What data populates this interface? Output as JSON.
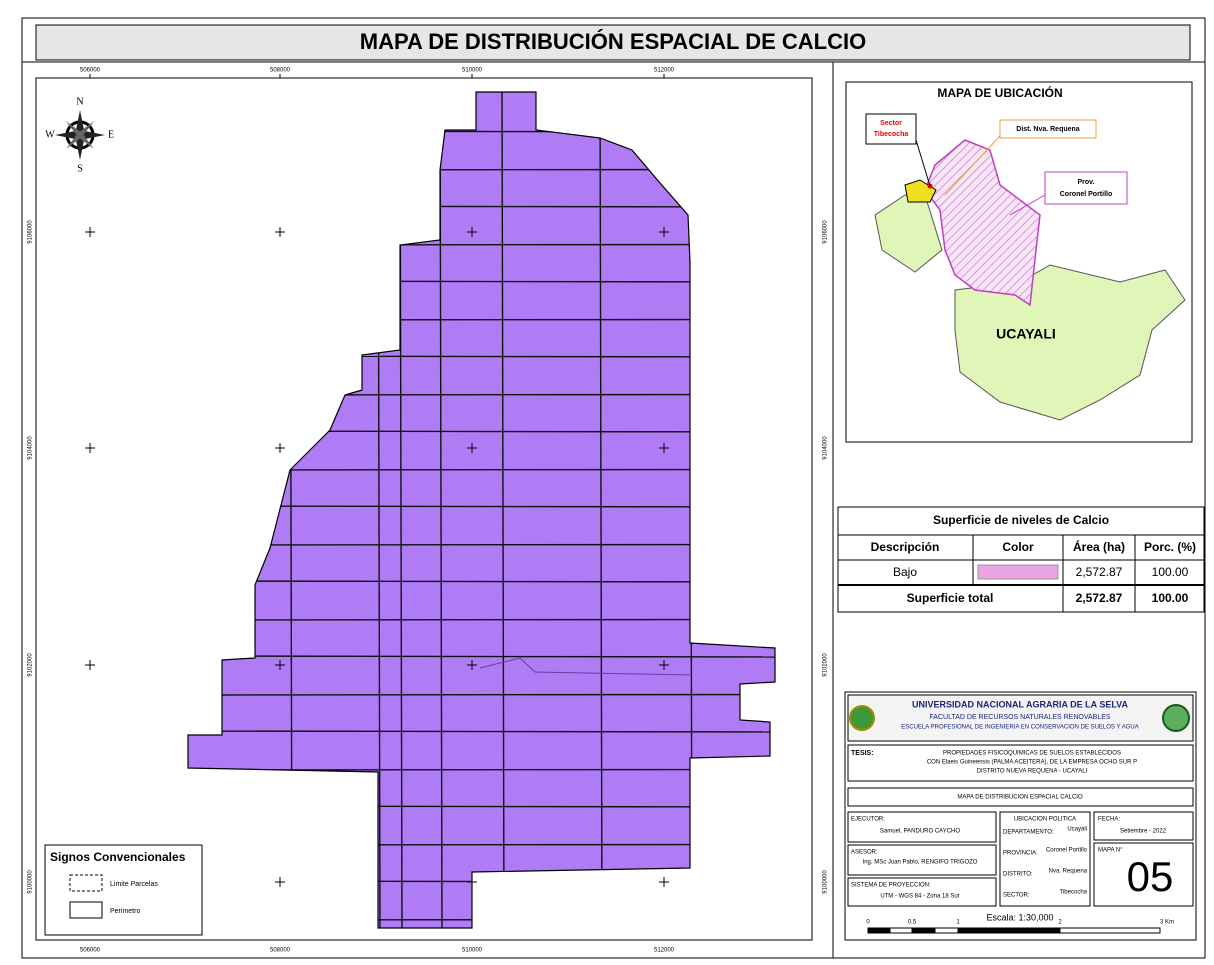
{
  "title": "MAPA DE DISTRIBUCIÓN ESPACIAL DE CALCIO",
  "map": {
    "x_labels": [
      "506000",
      "508000",
      "510000",
      "512000"
    ],
    "y_labels": [
      "9106000",
      "9104000",
      "9102000",
      "9100000"
    ],
    "north": {
      "n": "N",
      "s": "S",
      "e": "E",
      "w": "W"
    }
  },
  "legend": {
    "title": "Signos Convencionales",
    "items": [
      "Limite Parcelas",
      "Perimetro"
    ]
  },
  "location_map": {
    "title": "MAPA DE UBICACIÓN",
    "sector": [
      "Sector",
      "Tibecocha"
    ],
    "district": "Dist. Nva. Requena",
    "province": [
      "Prov.",
      "Coronel Portillo"
    ],
    "region": "UCAYALI"
  },
  "table": {
    "title": "Superficie de niveles de Calcio",
    "headers": [
      "Descripción",
      "Color",
      "Área (ha)",
      "Porc. (%)"
    ],
    "rows": [
      [
        "Bajo",
        "2,572.87",
        "100.00"
      ]
    ],
    "total": [
      "Superficie total",
      "2,572.87",
      "100.00"
    ]
  },
  "institution": {
    "name": "UNIVERSIDAD NACIONAL AGRARIA DE LA SELVA",
    "faculty": "FACULTAD DE RECURSOS NATURALES RENOVABLES",
    "school": "ESCUELA PROFESIONAL DE INGENIERIA EN CONSERVACION DE SUELOS Y AGUA",
    "thesis_label": "TESIS:",
    "thesis": [
      "PROPIEDADES FISICOQUIMICAS DE SUELOS ESTABLECIDOS",
      "CON Elaeis Guineensis (PALMA ACEITERA), DE LA EMPRESA OCHO SUR P",
      "DISTRITO NUEVA REQUENA -  UCAYALI"
    ],
    "map_title": "MAPA DE DISTRIBUCION ESPACIAL CALCIO",
    "executor_label": "EJECUTOR:",
    "executor": "Samuel, PANDURO CAYCHO",
    "advisor_label": "ASESOR:",
    "advisor": "Ing. MSc Juan Pablo, RENGIFO TRIGOZO",
    "projection_label": "SISTEMA DE PROYECCION:",
    "projection": "UTM - WGS 84 - Zona 18 Sur",
    "political_label": "UBICACION POLITICA",
    "political": [
      [
        "DEPARTAMENTO:",
        "Ucayali"
      ],
      [
        "PROVINCIA:",
        "Coronel Portillo"
      ],
      [
        "DISTRITO:",
        "Nva. Requena"
      ],
      [
        "SECTOR:",
        "Tibecocha"
      ]
    ],
    "date_label": "FECHA:",
    "date": "Setiembre - 2022",
    "map_no_label": "MAPA N°",
    "map_no": "05"
  },
  "scale": {
    "label": "Escala:  1:30,000",
    "ticks": [
      "0",
      "0.5",
      "1",
      "2",
      "3 Km"
    ]
  }
}
